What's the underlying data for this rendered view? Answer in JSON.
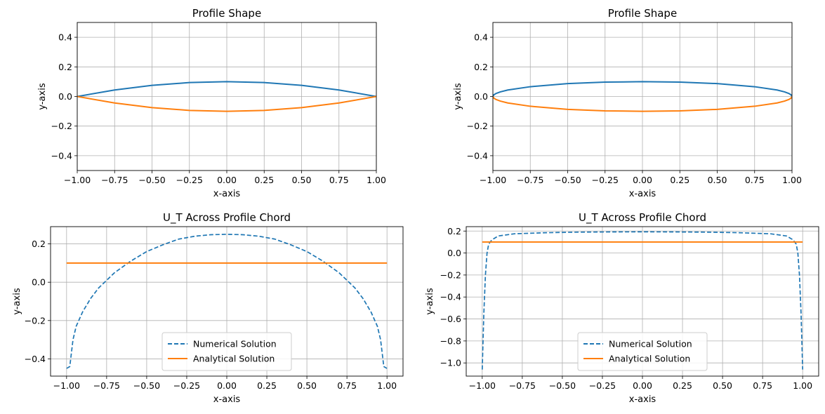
{
  "chart_data": [
    {
      "type": "line",
      "title": "Profile Shape",
      "xlabel": "x-axis",
      "ylabel": "y-axis",
      "xlim": [
        -1.0,
        1.0
      ],
      "ylim": [
        -0.5,
        0.5
      ],
      "xticks": [
        "−1.00",
        "−0.75",
        "−0.50",
        "−0.25",
        "0.00",
        "0.25",
        "0.50",
        "0.75",
        "1.00"
      ],
      "yticks": [
        "−0.4",
        "−0.2",
        "0.0",
        "0.2",
        "0.4"
      ],
      "grid": true,
      "series": [
        {
          "color": "#1f77b4",
          "linestyle": "solid",
          "x": [
            -1.0,
            -0.75,
            -0.5,
            -0.25,
            0.0,
            0.25,
            0.5,
            0.75,
            1.0
          ],
          "y": [
            0.0,
            0.044,
            0.075,
            0.094,
            0.1,
            0.094,
            0.075,
            0.044,
            0.0
          ]
        },
        {
          "color": "#ff7f0e",
          "linestyle": "solid",
          "x": [
            -1.0,
            -0.75,
            -0.5,
            -0.25,
            0.0,
            0.25,
            0.5,
            0.75,
            1.0
          ],
          "y": [
            0.0,
            -0.044,
            -0.075,
            -0.094,
            -0.1,
            -0.094,
            -0.075,
            -0.044,
            0.0
          ]
        }
      ]
    },
    {
      "type": "line",
      "title": "Profile Shape",
      "xlabel": "x-axis",
      "ylabel": "y-axis",
      "xlim": [
        -1.0,
        1.0
      ],
      "ylim": [
        -0.5,
        0.5
      ],
      "xticks": [
        "−1.00",
        "−0.75",
        "−0.50",
        "−0.25",
        "0.00",
        "0.25",
        "0.50",
        "0.75",
        "1.00"
      ],
      "yticks": [
        "−0.4",
        "−0.2",
        "0.0",
        "0.2",
        "0.4"
      ],
      "grid": true,
      "series": [
        {
          "color": "#1f77b4",
          "linestyle": "solid",
          "x": [
            -1.0,
            -0.995,
            -0.98,
            -0.95,
            -0.9,
            -0.75,
            -0.5,
            -0.25,
            0.0,
            0.25,
            0.5,
            0.75,
            0.9,
            0.95,
            0.98,
            0.995,
            1.0
          ],
          "y": [
            0.0,
            0.01,
            0.02,
            0.031,
            0.044,
            0.066,
            0.087,
            0.097,
            0.1,
            0.097,
            0.087,
            0.066,
            0.044,
            0.031,
            0.02,
            0.01,
            0.0
          ]
        },
        {
          "color": "#ff7f0e",
          "linestyle": "solid",
          "x": [
            -1.0,
            -0.995,
            -0.98,
            -0.95,
            -0.9,
            -0.75,
            -0.5,
            -0.25,
            0.0,
            0.25,
            0.5,
            0.75,
            0.9,
            0.95,
            0.98,
            0.995,
            1.0
          ],
          "y": [
            0.0,
            -0.01,
            -0.02,
            -0.031,
            -0.044,
            -0.066,
            -0.087,
            -0.097,
            -0.1,
            -0.097,
            -0.087,
            -0.066,
            -0.044,
            -0.031,
            -0.02,
            -0.01,
            0.0
          ]
        }
      ]
    },
    {
      "type": "line",
      "title": "U_T Across Profile Chord",
      "xlabel": "x-axis",
      "ylabel": "y-axis",
      "xlim": [
        -1.1,
        1.1
      ],
      "ylim": [
        -0.49,
        0.29
      ],
      "xticks": [
        "−1.00",
        "−0.75",
        "−0.50",
        "−0.25",
        "0.00",
        "0.25",
        "0.50",
        "0.75",
        "1.00"
      ],
      "yticks": [
        "−0.4",
        "−0.2",
        "0.0",
        "0.2"
      ],
      "grid": true,
      "legend": "lower center",
      "series": [
        {
          "name": "Numerical Solution",
          "color": "#1f77b4",
          "linestyle": "dashed",
          "x": [
            -1.0,
            -0.98,
            -0.96,
            -0.94,
            -0.9,
            -0.85,
            -0.8,
            -0.7,
            -0.6,
            -0.5,
            -0.4,
            -0.3,
            -0.2,
            -0.1,
            0.0,
            0.1,
            0.2,
            0.3,
            0.4,
            0.5,
            0.6,
            0.7,
            0.8,
            0.85,
            0.9,
            0.94,
            0.96,
            0.98,
            1.0
          ],
          "y": [
            -0.45,
            -0.44,
            -0.3,
            -0.23,
            -0.155,
            -0.085,
            -0.03,
            0.05,
            0.11,
            0.16,
            0.195,
            0.225,
            0.24,
            0.248,
            0.25,
            0.248,
            0.24,
            0.225,
            0.195,
            0.16,
            0.11,
            0.05,
            -0.03,
            -0.085,
            -0.155,
            -0.23,
            -0.3,
            -0.44,
            -0.45
          ]
        },
        {
          "name": "Analytical Solution",
          "color": "#ff7f0e",
          "linestyle": "solid",
          "x": [
            -1.0,
            1.0
          ],
          "y": [
            0.1,
            0.1
          ]
        }
      ]
    },
    {
      "type": "line",
      "title": "U_T Across Profile Chord",
      "xlabel": "x-axis",
      "ylabel": "y-axis",
      "xlim": [
        -1.1,
        1.1
      ],
      "ylim": [
        -1.12,
        0.24
      ],
      "xticks": [
        "−1.00",
        "−0.75",
        "−0.50",
        "−0.25",
        "0.00",
        "0.25",
        "0.50",
        "0.75",
        "1.00"
      ],
      "yticks": [
        "−1.0",
        "−0.8",
        "−0.6",
        "−0.4",
        "−0.2",
        "0.0",
        "0.2"
      ],
      "grid": true,
      "legend": "lower center",
      "series": [
        {
          "name": "Numerical Solution",
          "color": "#1f77b4",
          "linestyle": "dashed",
          "x": [
            -1.0,
            -0.99,
            -0.98,
            -0.97,
            -0.96,
            -0.94,
            -0.9,
            -0.8,
            -0.6,
            -0.4,
            -0.2,
            0.0,
            0.2,
            0.4,
            0.6,
            0.8,
            0.9,
            0.94,
            0.96,
            0.97,
            0.98,
            0.99,
            1.0
          ],
          "y": [
            -1.06,
            -0.55,
            -0.2,
            0.0,
            0.08,
            0.12,
            0.155,
            0.175,
            0.185,
            0.19,
            0.192,
            0.193,
            0.192,
            0.19,
            0.185,
            0.175,
            0.155,
            0.12,
            0.08,
            0.0,
            -0.2,
            -0.55,
            -1.06
          ]
        },
        {
          "name": "Analytical Solution",
          "color": "#ff7f0e",
          "linestyle": "solid",
          "x": [
            -1.0,
            1.0
          ],
          "y": [
            0.1,
            0.1
          ]
        }
      ]
    }
  ]
}
